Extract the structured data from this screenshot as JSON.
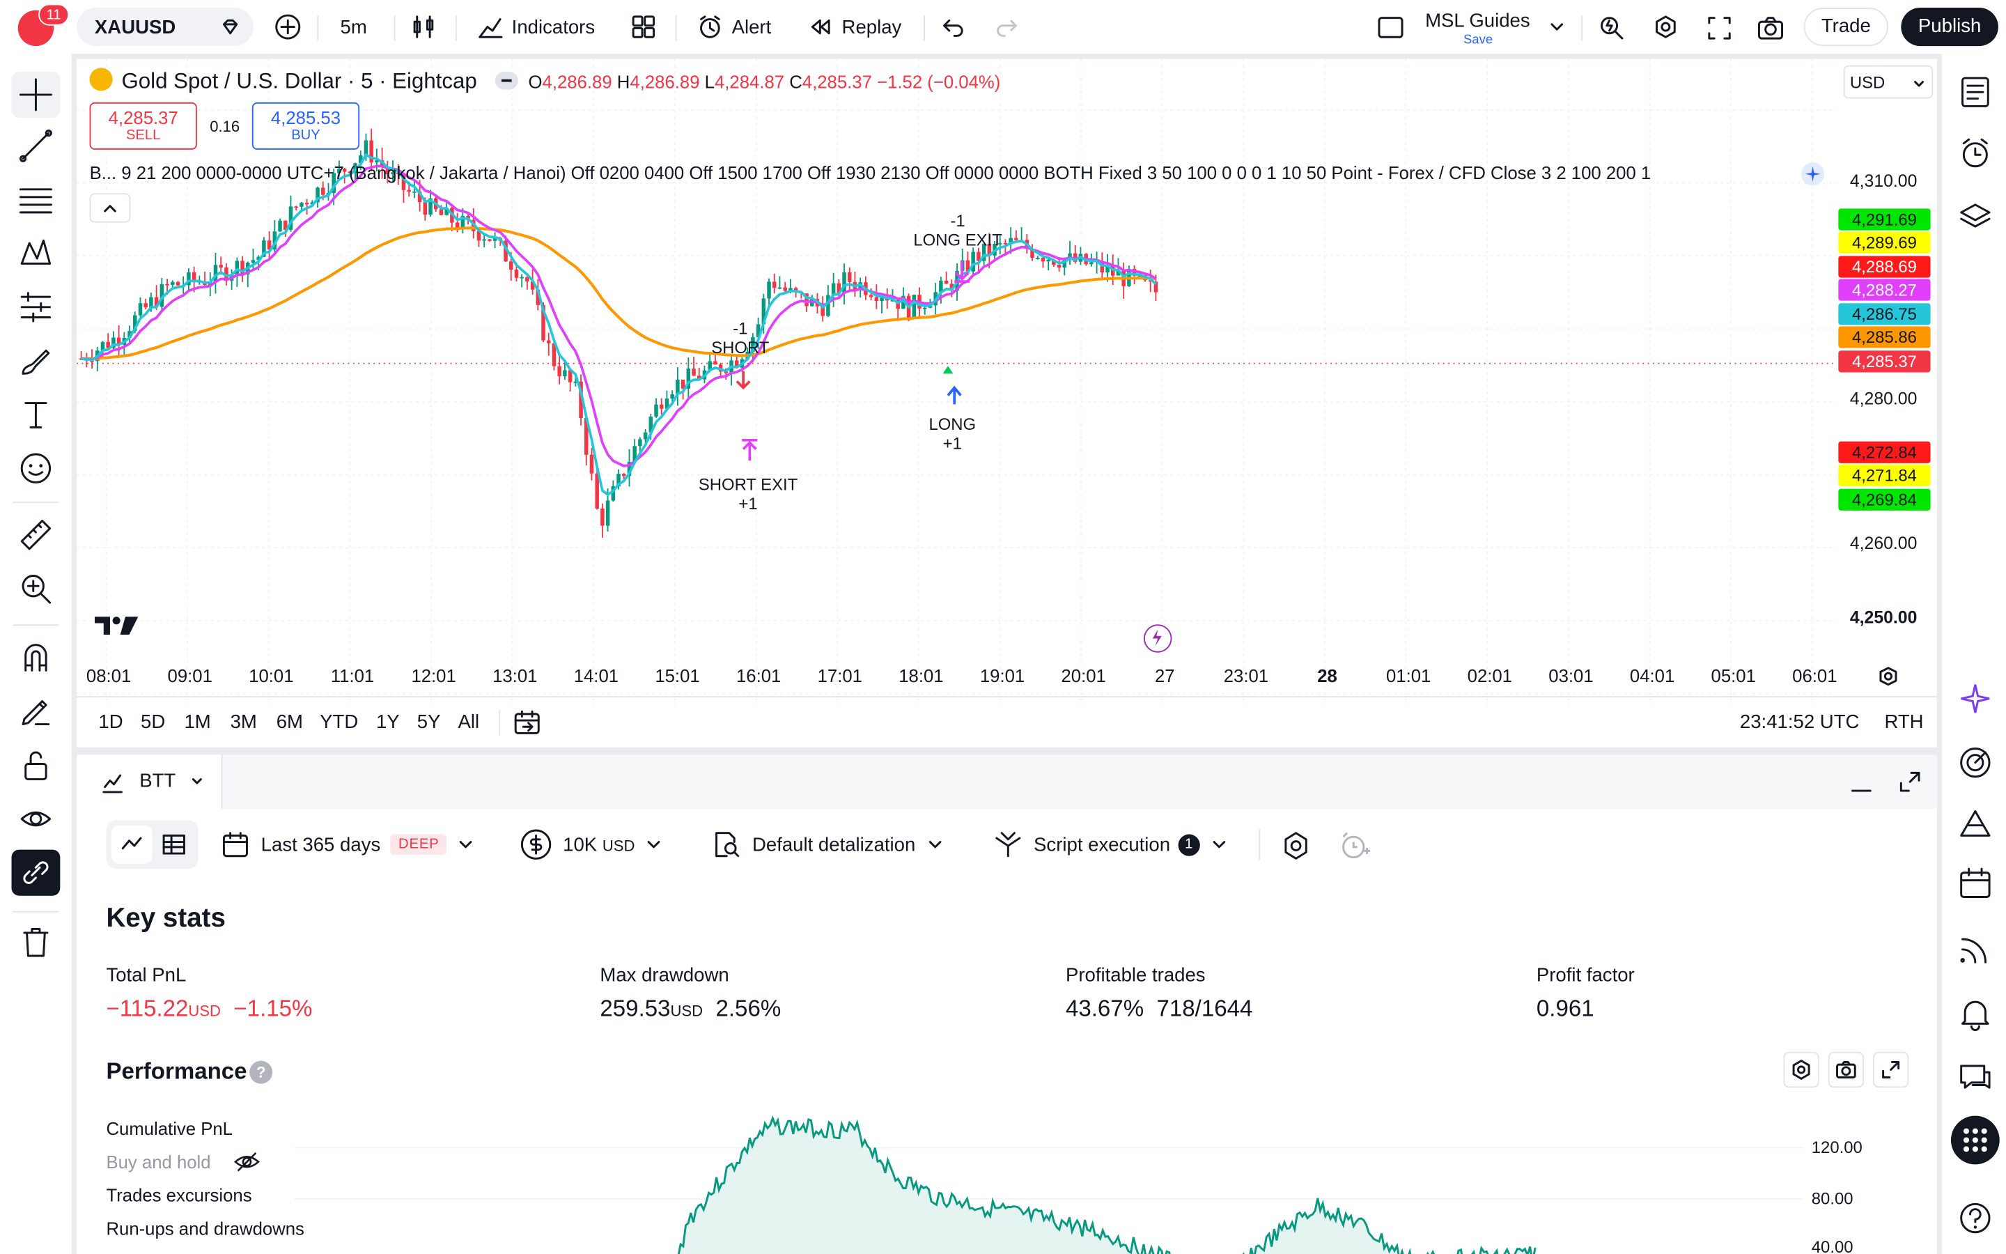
{
  "topbar": {
    "avatar_badge": "11",
    "symbol": "XAUUSD",
    "interval": "5m",
    "indicators": "Indicators",
    "alert": "Alert",
    "replay": "Replay",
    "layout_name": "MSL Guides",
    "layout_save": "Save",
    "trade": "Trade",
    "publish": "Publish"
  },
  "legend": {
    "title": "Gold Spot / U.S. Dollar · 5 · Eightcap",
    "o_label": "O",
    "o": "4,286.89",
    "h_label": "H",
    "h": "4,286.89",
    "l_label": "L",
    "l": "4,284.87",
    "c_label": "C",
    "c": "4,285.37",
    "change": "−1.52 (−0.04%)",
    "sell_price": "4,285.37",
    "sell": "SELL",
    "spread": "0.16",
    "buy_price": "4,285.53",
    "buy": "BUY",
    "strategy_line": "B... 9 21 200 0000-0000 UTC+7 (Bangkok / Jakarta / Hanoi) Off 0200 0400 Off 1500 1700 Off 1930 2130 Off 0000 0000 BOTH Fixed 3 50 100 0 0 0 1 10 50 Point - Forex / CFD Close 3 2 100 200 1"
  },
  "currency": "USD",
  "yaxis": {
    "ticks": [
      "4,310.00",
      "4,280.00",
      "4,260.00",
      "4,250.00"
    ],
    "price_labels": [
      {
        "value": "4,291.69",
        "color": "#00e600",
        "text": "#131722"
      },
      {
        "value": "4,289.69",
        "color": "#ffff00",
        "text": "#131722"
      },
      {
        "value": "4,288.69",
        "color": "#ff1a1a",
        "text": "#ffffff"
      },
      {
        "value": "4,288.27",
        "color": "#e040fb",
        "text": "#ffffff"
      },
      {
        "value": "4,286.75",
        "color": "#26c6da",
        "text": "#131722"
      },
      {
        "value": "4,285.86",
        "color": "#ff9800",
        "text": "#131722"
      },
      {
        "value": "4,285.37",
        "color": "#f23645",
        "text": "#ffffff"
      },
      {
        "value": "4,272.84",
        "color": "#ff1a1a",
        "text": "#131722"
      },
      {
        "value": "4,271.84",
        "color": "#ffff00",
        "text": "#131722"
      },
      {
        "value": "4,269.84",
        "color": "#00e600",
        "text": "#131722"
      }
    ]
  },
  "xaxis": [
    "08:01",
    "09:01",
    "10:01",
    "11:01",
    "12:01",
    "13:01",
    "14:01",
    "15:01",
    "16:01",
    "17:01",
    "18:01",
    "19:01",
    "20:01",
    "27",
    "23:01",
    "28",
    "01:01",
    "02:01",
    "03:01",
    "04:01",
    "05:01",
    "06:01"
  ],
  "signals": {
    "short": [
      "-1",
      "SHORT"
    ],
    "short_exit": [
      "SHORT EXIT",
      "+1"
    ],
    "long": [
      "LONG",
      "+1"
    ],
    "long_exit": [
      "-1",
      "LONG EXIT"
    ]
  },
  "ranges": [
    "1D",
    "5D",
    "1M",
    "3M",
    "6M",
    "YTD",
    "1Y",
    "5Y",
    "All"
  ],
  "clock": "23:41:52 UTC",
  "session": "RTH",
  "panel": {
    "tab": "BTT",
    "period": "Last 365 days",
    "deep": "DEEP",
    "capital": "10K",
    "capital_unit": "USD",
    "detail": "Default detalization",
    "script": "Script execution",
    "script_count": "1"
  },
  "stats": {
    "heading": "Key stats",
    "pnl_label": "Total PnL",
    "pnl_value": "−115.22",
    "pnl_unit": "USD",
    "pnl_pct": "−1.15%",
    "dd_label": "Max drawdown",
    "dd_value": "259.53",
    "dd_unit": "USD",
    "dd_pct": "2.56%",
    "pt_label": "Profitable trades",
    "pt_pct": "43.67%",
    "pt_ratio": "718/1644",
    "pf_label": "Profit factor",
    "pf_value": "0.961"
  },
  "performance": {
    "heading": "Performance",
    "legend": [
      "Cumulative PnL",
      "Buy and hold",
      "Trades excursions",
      "Run-ups and drawdowns"
    ],
    "ticks": [
      "120.00",
      "80.00",
      "40.00"
    ]
  },
  "colors": {
    "up": "#089981",
    "down": "#f23645",
    "ema_fast": "#26c6da",
    "ema_mid": "#e040fb",
    "ema_slow": "#ff9800",
    "perf": "#089981"
  }
}
